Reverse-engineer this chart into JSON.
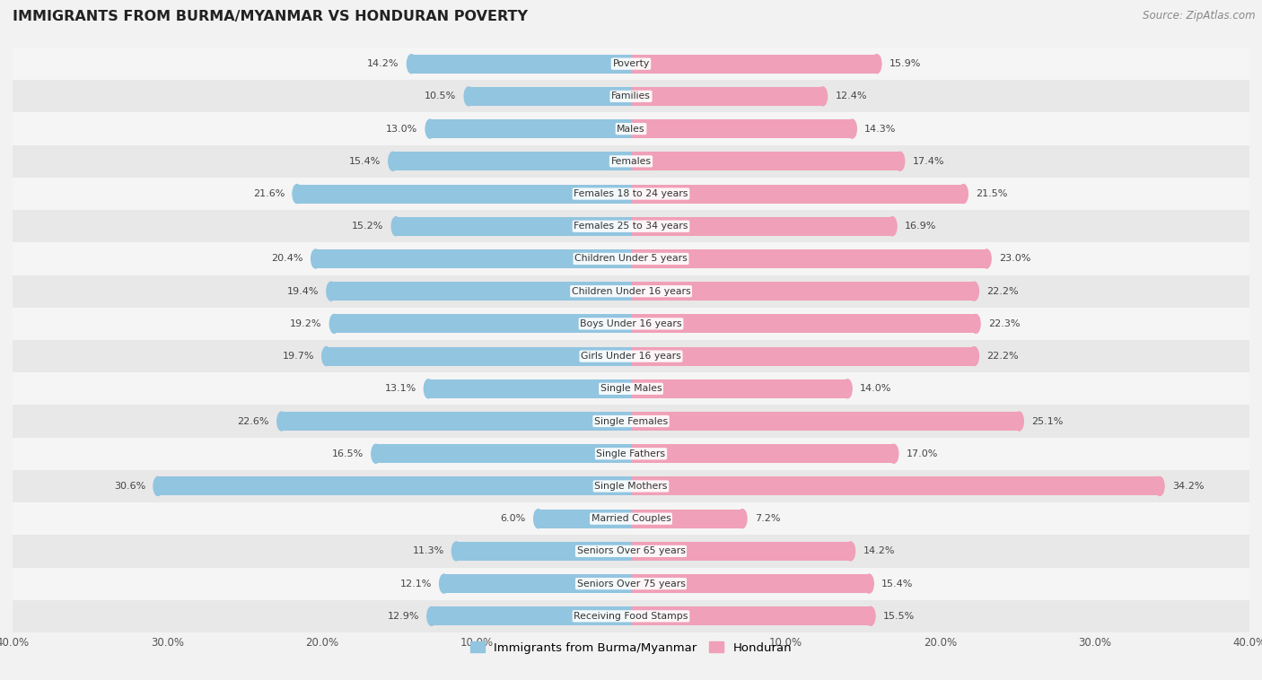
{
  "title": "IMMIGRANTS FROM BURMA/MYANMAR VS HONDURAN POVERTY",
  "source": "Source: ZipAtlas.com",
  "categories": [
    "Poverty",
    "Families",
    "Males",
    "Females",
    "Females 18 to 24 years",
    "Females 25 to 34 years",
    "Children Under 5 years",
    "Children Under 16 years",
    "Boys Under 16 years",
    "Girls Under 16 years",
    "Single Males",
    "Single Females",
    "Single Fathers",
    "Single Mothers",
    "Married Couples",
    "Seniors Over 65 years",
    "Seniors Over 75 years",
    "Receiving Food Stamps"
  ],
  "burma_values": [
    14.2,
    10.5,
    13.0,
    15.4,
    21.6,
    15.2,
    20.4,
    19.4,
    19.2,
    19.7,
    13.1,
    22.6,
    16.5,
    30.6,
    6.0,
    11.3,
    12.1,
    12.9
  ],
  "honduran_values": [
    15.9,
    12.4,
    14.3,
    17.4,
    21.5,
    16.9,
    23.0,
    22.2,
    22.3,
    22.2,
    14.0,
    25.1,
    17.0,
    34.2,
    7.2,
    14.2,
    15.4,
    15.5
  ],
  "burma_color": "#92c5e0",
  "honduran_color": "#f0a0b8",
  "row_colors": [
    "#f5f5f5",
    "#e8e8e8"
  ],
  "axis_max": 40.0,
  "bar_height": 0.58,
  "legend_labels": [
    "Immigrants from Burma/Myanmar",
    "Honduran"
  ],
  "tick_positions": [
    -40,
    -30,
    -20,
    -10,
    10,
    20,
    30,
    40
  ],
  "tick_labels": [
    "40.0%",
    "30.0%",
    "20.0%",
    "10.0%",
    "10.0%",
    "20.0%",
    "30.0%",
    "40.0%"
  ]
}
